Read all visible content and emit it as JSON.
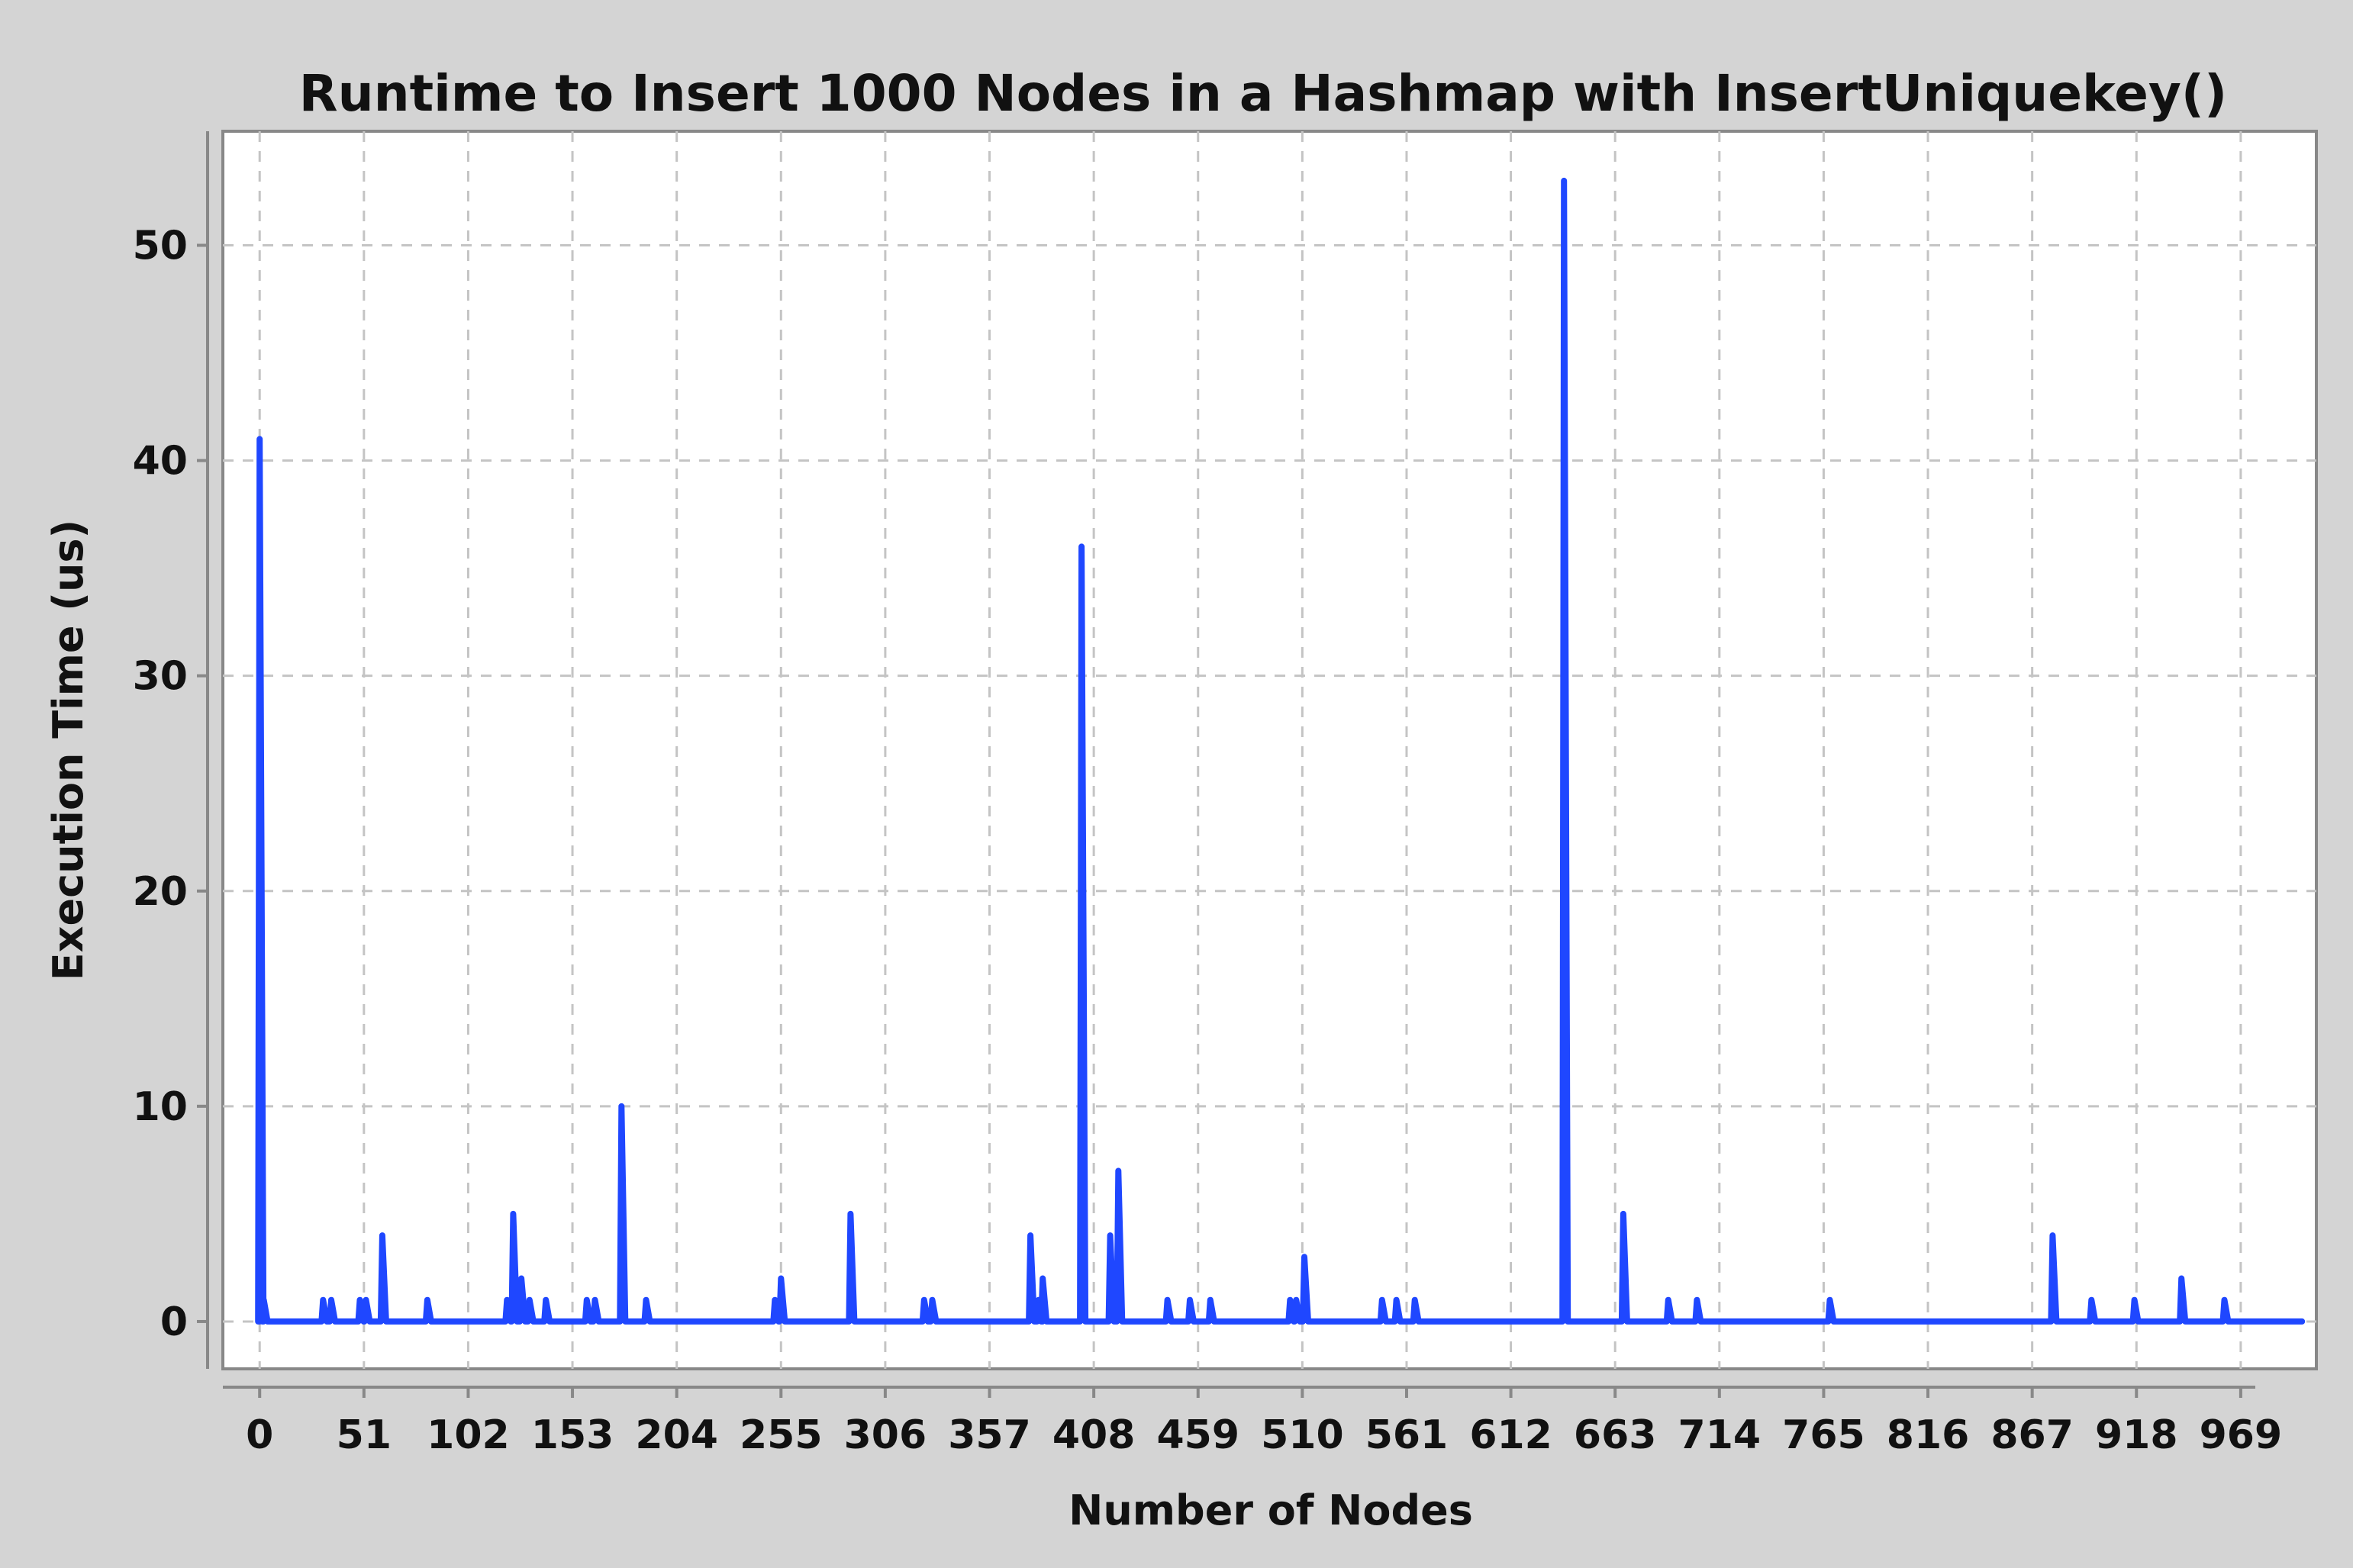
{
  "chart_data": {
    "type": "line",
    "title": "Runtime to Insert 1000 Nodes in a Hashmap with InsertUniquekey()",
    "xlabel": "Number of Nodes",
    "ylabel": "Execution Time (us)",
    "xlim": [
      -18,
      1006
    ],
    "ylim": [
      -2.2,
      55.3
    ],
    "xticks": [
      "0",
      "51",
      "102",
      "153",
      "204",
      "255",
      "306",
      "357",
      "408",
      "459",
      "510",
      "561",
      "612",
      "663",
      "714",
      "765",
      "816",
      "867",
      "918",
      "969"
    ],
    "yticks": [
      "0",
      "10",
      "20",
      "30",
      "40",
      "50"
    ],
    "grid": true,
    "legend": "none",
    "baseline": 0,
    "x_max": 999,
    "series": [
      {
        "color": "#1f47ff",
        "spikes": [
          [
            0,
            41
          ],
          [
            2,
            1
          ],
          [
            31,
            1
          ],
          [
            35,
            1
          ],
          [
            49,
            1
          ],
          [
            52,
            1
          ],
          [
            60,
            4
          ],
          [
            82,
            1
          ],
          [
            121,
            1
          ],
          [
            124,
            5
          ],
          [
            128,
            2
          ],
          [
            132,
            1
          ],
          [
            140,
            1
          ],
          [
            160,
            1
          ],
          [
            164,
            1
          ],
          [
            177,
            10
          ],
          [
            189,
            1
          ],
          [
            252,
            1
          ],
          [
            255,
            2
          ],
          [
            289,
            5
          ],
          [
            325,
            1
          ],
          [
            329,
            1
          ],
          [
            377,
            4
          ],
          [
            381,
            1
          ],
          [
            383,
            2
          ],
          [
            402,
            36
          ],
          [
            416,
            4
          ],
          [
            420,
            7
          ],
          [
            444,
            1
          ],
          [
            455,
            1
          ],
          [
            465,
            1
          ],
          [
            504,
            1
          ],
          [
            507,
            1
          ],
          [
            511,
            3
          ],
          [
            549,
            1
          ],
          [
            556,
            1
          ],
          [
            565,
            1
          ],
          [
            638,
            53
          ],
          [
            667,
            5
          ],
          [
            689,
            1
          ],
          [
            703,
            1
          ],
          [
            768,
            1
          ],
          [
            877,
            4
          ],
          [
            896,
            1
          ],
          [
            917,
            1
          ],
          [
            940,
            2
          ],
          [
            961,
            1
          ]
        ]
      }
    ]
  }
}
